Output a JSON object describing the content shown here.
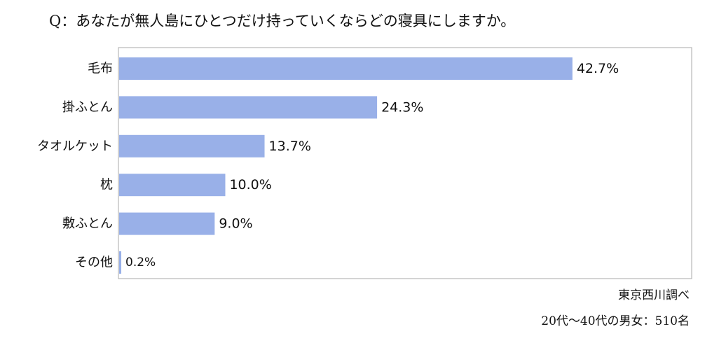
{
  "chart_data": {
    "type": "bar",
    "orientation": "horizontal",
    "title": "Q：あなたが無人島にひとつだけ持っていくならどの寝具にしますか。",
    "categories": [
      "毛布",
      "掛ふとん",
      "タオルケット",
      "枕",
      "敷ふとん",
      "その他"
    ],
    "values": [
      42.7,
      24.3,
      13.7,
      10.0,
      9.0,
      0.2
    ],
    "value_labels": [
      "42.7%",
      "24.3%",
      "13.7%",
      "10.0%",
      "9.0%",
      "0.2%"
    ],
    "unit": "%",
    "xlim": [
      0,
      54
    ],
    "grid": false,
    "legend": "none",
    "bar_color": "#99b0e8",
    "frame_color": "#aaaaaa"
  },
  "notes": {
    "source": "東京西川調べ",
    "sample": "20代〜40代の男女：510名"
  }
}
